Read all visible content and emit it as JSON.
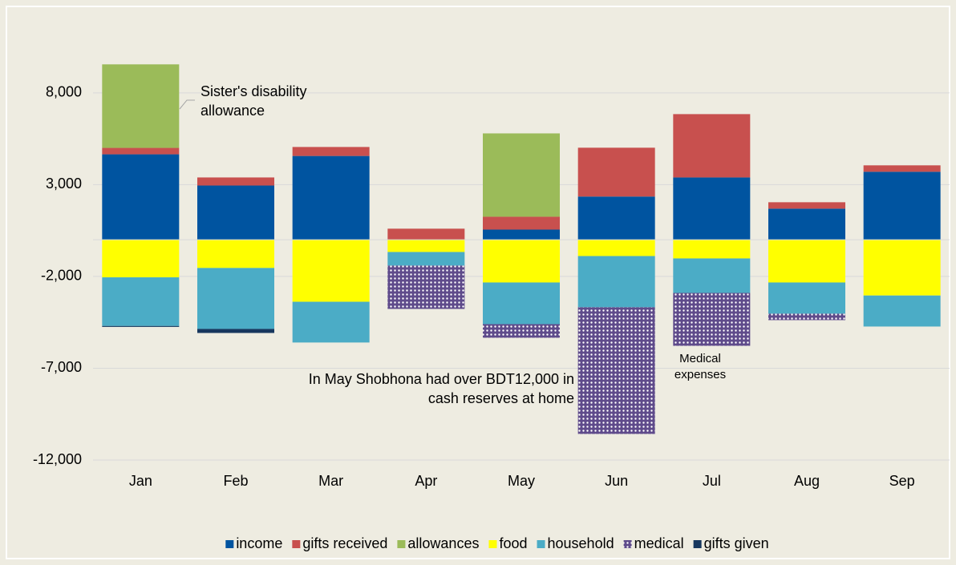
{
  "chart_data": {
    "type": "bar",
    "stacked": true,
    "categories": [
      "Jan",
      "Feb",
      "Mar",
      "Apr",
      "May",
      "Jun",
      "Jul",
      "Aug",
      "Sep"
    ],
    "series": [
      {
        "name": "income",
        "color": "#0054a0",
        "values": [
          4650,
          2950,
          4560,
          0,
          550,
          2350,
          3390,
          1690,
          3700
        ]
      },
      {
        "name": "gifts received",
        "color": "#c8504e",
        "values": [
          350,
          440,
          490,
          600,
          700,
          2660,
          3450,
          350,
          350
        ]
      },
      {
        "name": "allowances",
        "color": "#9bbb59",
        "values": [
          4550,
          0,
          0,
          0,
          4540,
          0,
          0,
          0,
          0
        ]
      },
      {
        "name": "food",
        "color": "#ffff00",
        "values": [
          -2050,
          -1540,
          -3380,
          -670,
          -2330,
          -890,
          -1020,
          -2330,
          -3040
        ]
      },
      {
        "name": "household",
        "color": "#4bacc6",
        "values": [
          -2650,
          -3320,
          -2220,
          -740,
          -2270,
          -2790,
          -1880,
          -1700,
          -1690
        ]
      },
      {
        "name": "medical",
        "color": "#5f4b8b",
        "pattern": "dots",
        "values": [
          0,
          0,
          0,
          -2360,
          -740,
          -6900,
          -2880,
          -350,
          0
        ]
      },
      {
        "name": "gifts given",
        "color": "#17375e",
        "values": [
          -50,
          -220,
          0,
          0,
          0,
          0,
          0,
          0,
          0
        ]
      }
    ],
    "ylim": [
      -12000,
      10000
    ],
    "yticks": [
      {
        "value": -12000,
        "label": "-12,000"
      },
      {
        "value": -7000,
        "label": "-7,000"
      },
      {
        "value": -2000,
        "label": "-2,000"
      },
      {
        "value": 3000,
        "label": "3,000"
      },
      {
        "value": 8000,
        "label": "8,000"
      }
    ],
    "grid": true,
    "legend": "bottom",
    "annotations": [
      {
        "lines": [
          "Sister's disability",
          "allowance"
        ]
      },
      {
        "lines": [
          "In May Shobhona had over BDT12,000 in",
          "cash reserves at home"
        ]
      },
      {
        "lines": [
          "Medical",
          "expenses"
        ]
      }
    ]
  }
}
